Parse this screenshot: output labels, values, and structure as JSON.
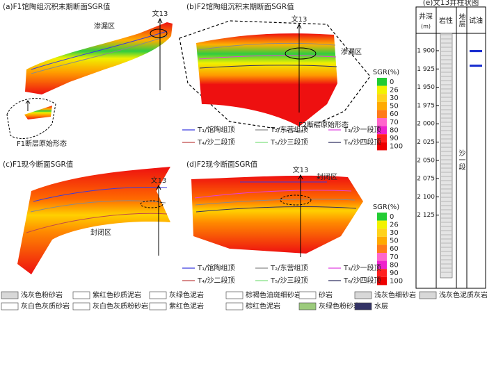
{
  "panels": [
    {
      "title": "(a)F1馆陶组沉积末期断面SGR值",
      "well": "文13",
      "annotations": [
        "渗漏区",
        "F1断层原始形态"
      ]
    },
    {
      "title": "(b)F2馆陶组沉积末期断面SGR值",
      "well": "文13",
      "annotations": [
        "渗漏区",
        "F2断层原始形态"
      ]
    },
    {
      "title": "(c)F1现今断面SGR值",
      "well": "文13",
      "annotations": [
        "封闭区"
      ]
    },
    {
      "title": "(d)F2现今断面SGR值",
      "well": "文13",
      "annotations": [
        "封闭区"
      ]
    }
  ],
  "sgr_scales": [
    {
      "title": "SGR(%)",
      "ticks": [
        0,
        26,
        30,
        50,
        60,
        70,
        80,
        90,
        100
      ],
      "colors": [
        "#22cc33",
        "#f2f200",
        "#ffd21a",
        "#ffaa00",
        "#ff7a1a",
        "#ff66cc",
        "#ee22cc",
        "#ff2020",
        "#ee0000"
      ]
    },
    {
      "title": "SGR(%)",
      "ticks": [
        0,
        26,
        30,
        50,
        60,
        70,
        80,
        90,
        100
      ],
      "colors": [
        "#22cc33",
        "#f2f200",
        "#ffd21a",
        "#ffaa00",
        "#ff7a1a",
        "#ff66cc",
        "#ee22cc",
        "#ff2020",
        "#ee0000"
      ]
    }
  ],
  "horizon_legends": [
    [
      {
        "name": "T₁/馆陶组顶",
        "color": "#3a3adf"
      },
      {
        "name": "T₂/东营组顶",
        "color": "#8a8a8a"
      },
      {
        "name": "T₃/沙一段顶",
        "color": "#e040e0"
      },
      {
        "name": "T₄/沙二段顶",
        "color": "#c04848"
      },
      {
        "name": "T₅/沙三段顶",
        "color": "#80e080"
      },
      {
        "name": "T₆/沙四段顶",
        "color": "#303060"
      }
    ],
    [
      {
        "name": "T₁/馆陶组顶",
        "color": "#3a3adf"
      },
      {
        "name": "T₂/东营组顶",
        "color": "#8a8a8a"
      },
      {
        "name": "T₃/沙一段顶",
        "color": "#e040e0"
      },
      {
        "name": "T₄/沙二段顶",
        "color": "#c04848"
      },
      {
        "name": "T₅/沙三段顶",
        "color": "#80e080"
      },
      {
        "name": "T₆/沙四段顶",
        "color": "#303060"
      }
    ]
  ],
  "lithology_legend": [
    [
      {
        "name": "浅灰色粉砂岩",
        "color": "#d8d8d8"
      },
      {
        "name": "紫红色砂质泥岩",
        "color": "#ffffff"
      },
      {
        "name": "灰绿色泥岩",
        "color": "#ffffff"
      },
      {
        "name": "棕褐色油斑细砂岩",
        "color": "#ffffff"
      },
      {
        "name": "砂岩",
        "color": "#ffffff"
      },
      {
        "name": "浅灰色细砂岩",
        "color": "#d8d8d8"
      },
      {
        "name": "浅灰色泥质灰岩",
        "color": "#d8d8d8"
      }
    ],
    [
      {
        "name": "灰白色灰质砂岩",
        "color": "#ffffff"
      },
      {
        "name": "灰白色灰质粉砂岩",
        "color": "#ffffff"
      },
      {
        "name": "紫红色泥岩",
        "color": "#ffffff"
      },
      {
        "name": "棕红色泥岩",
        "color": "#ffffff"
      },
      {
        "name": "灰绿色粉砂岩",
        "color": "#9ccb7c"
      },
      {
        "name": "水层",
        "color": "#333366"
      }
    ]
  ],
  "well_column": {
    "title": "(e)文13井柱状图",
    "depth_header": "井深",
    "depth_unit": "(m)",
    "lithology_header": "岩性",
    "stratum_header": "地层",
    "oil_header": "试油",
    "stratum": "沙一段",
    "depth_ticks": [
      {
        "value": 1900,
        "label": "1 900"
      },
      {
        "value": 1925,
        "label": "1 925"
      },
      {
        "value": 1950,
        "label": "1 950"
      },
      {
        "value": 1975,
        "label": "1 975"
      },
      {
        "value": 2000,
        "label": "2 000"
      },
      {
        "value": 2025,
        "label": "2 025"
      },
      {
        "value": 2050,
        "label": "2 050"
      },
      {
        "value": 2075,
        "label": "2 075"
      },
      {
        "value": 2100,
        "label": "2 100"
      },
      {
        "value": 2125,
        "label": "2 125"
      }
    ],
    "oil_tests": [
      {
        "top": 1899,
        "bottom": 1902
      },
      {
        "top": 1919,
        "bottom": 1922
      }
    ]
  }
}
